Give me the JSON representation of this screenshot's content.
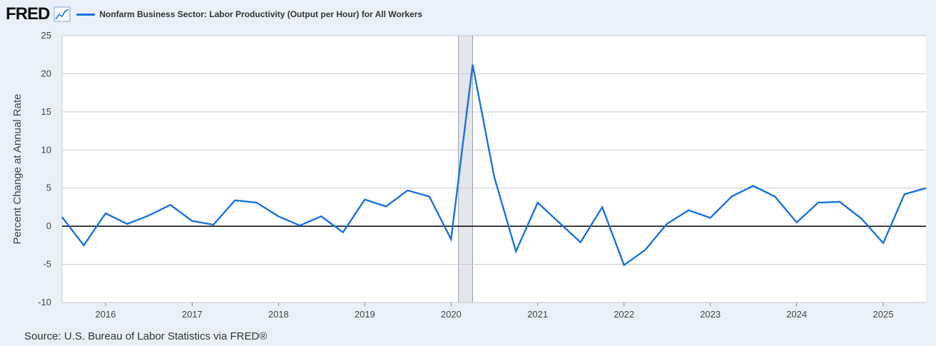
{
  "header": {
    "logo_text": "FRED",
    "legend_label": "Nonfarm Business Sector: Labor Productivity (Output per Hour) for All Workers"
  },
  "colors": {
    "series": "#1a73dc",
    "recession": "#e3e6eb",
    "grid": "#c9c9c9",
    "zero_line": "#000000",
    "background": "#e9f0fa",
    "plot_background": "#ffffff"
  },
  "footer": {
    "source": "Source: U.S. Bureau of Labor Statistics via FRED®"
  },
  "chart_data": {
    "type": "line",
    "title": "",
    "ylabel": "Percent Change at Annual Rate",
    "xlabel": "",
    "ylim": [
      -10,
      25
    ],
    "yticks": [
      25,
      20,
      15,
      10,
      5,
      0,
      -5,
      -10
    ],
    "xlim": [
      "2015-07-01",
      "2025-07-01"
    ],
    "xticks": [
      "2016",
      "2017",
      "2018",
      "2019",
      "2020",
      "2021",
      "2022",
      "2023",
      "2024",
      "2025"
    ],
    "grid": true,
    "legend": "top-left",
    "recession_shading": [
      {
        "start": "2020-02-01",
        "end": "2020-04-01"
      }
    ],
    "series": [
      {
        "name": "Nonfarm Business Sector: Labor Productivity (Output per Hour) for All Workers",
        "points": [
          {
            "x": "2015-07-01",
            "y": 1.2
          },
          {
            "x": "2015-10-01",
            "y": -2.5
          },
          {
            "x": "2016-01-01",
            "y": 1.7
          },
          {
            "x": "2016-04-01",
            "y": 0.3
          },
          {
            "x": "2016-07-01",
            "y": 1.4
          },
          {
            "x": "2016-10-01",
            "y": 2.8
          },
          {
            "x": "2017-01-01",
            "y": 0.7
          },
          {
            "x": "2017-04-01",
            "y": 0.2
          },
          {
            "x": "2017-07-01",
            "y": 3.4
          },
          {
            "x": "2017-10-01",
            "y": 3.1
          },
          {
            "x": "2018-01-01",
            "y": 1.3
          },
          {
            "x": "2018-04-01",
            "y": 0.1
          },
          {
            "x": "2018-07-01",
            "y": 1.3
          },
          {
            "x": "2018-10-01",
            "y": -0.8
          },
          {
            "x": "2019-01-01",
            "y": 3.5
          },
          {
            "x": "2019-04-01",
            "y": 2.6
          },
          {
            "x": "2019-07-01",
            "y": 4.7
          },
          {
            "x": "2019-10-01",
            "y": 3.9
          },
          {
            "x": "2020-01-01",
            "y": -1.7
          },
          {
            "x": "2020-04-01",
            "y": 21.2
          },
          {
            "x": "2020-07-01",
            "y": 6.5
          },
          {
            "x": "2020-10-01",
            "y": -3.3
          },
          {
            "x": "2021-01-01",
            "y": 3.1
          },
          {
            "x": "2021-04-01",
            "y": 0.5
          },
          {
            "x": "2021-07-01",
            "y": -2.1
          },
          {
            "x": "2021-10-01",
            "y": 2.5
          },
          {
            "x": "2022-01-01",
            "y": -5.1
          },
          {
            "x": "2022-04-01",
            "y": -3.1
          },
          {
            "x": "2022-07-01",
            "y": 0.3
          },
          {
            "x": "2022-10-01",
            "y": 2.1
          },
          {
            "x": "2023-01-01",
            "y": 1.1
          },
          {
            "x": "2023-04-01",
            "y": 3.9
          },
          {
            "x": "2023-07-01",
            "y": 5.3
          },
          {
            "x": "2023-10-01",
            "y": 3.9
          },
          {
            "x": "2024-01-01",
            "y": 0.5
          },
          {
            "x": "2024-04-01",
            "y": 3.1
          },
          {
            "x": "2024-07-01",
            "y": 3.2
          },
          {
            "x": "2024-10-01",
            "y": 1.0
          },
          {
            "x": "2025-01-01",
            "y": -2.2
          },
          {
            "x": "2025-04-01",
            "y": 4.2
          },
          {
            "x": "2025-07-01",
            "y": 5.0
          }
        ]
      }
    ]
  }
}
